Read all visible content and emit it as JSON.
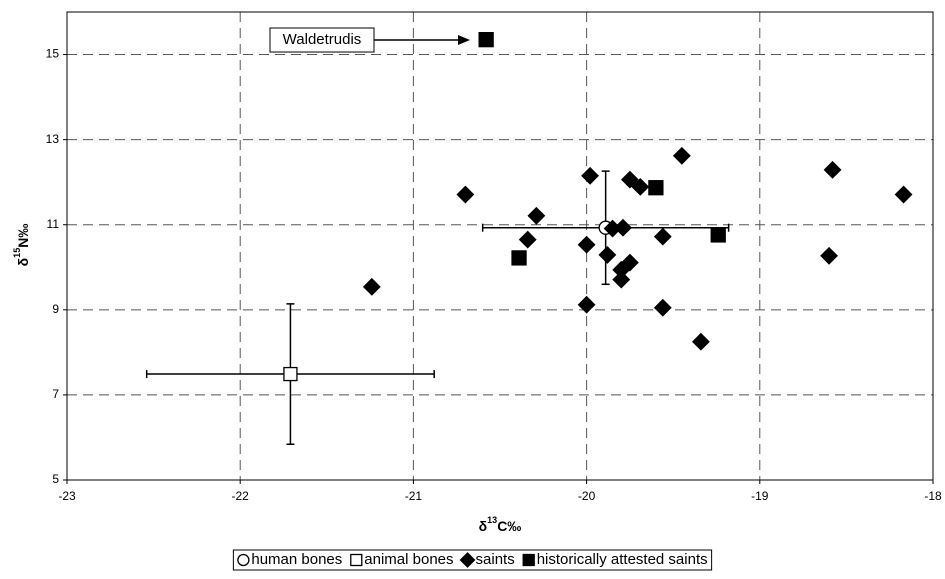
{
  "chart_data": {
    "type": "scatter",
    "x_label": [
      "δ",
      "13",
      "C‰"
    ],
    "y_label": [
      "δ",
      "15",
      "N‰"
    ],
    "xlim": [
      -23,
      -18
    ],
    "xticks": [
      -23,
      -22,
      -21,
      -20,
      -19,
      -18
    ],
    "ylim": [
      5,
      16
    ],
    "yticks": [
      5,
      7,
      9,
      11,
      13,
      15
    ],
    "grid": true,
    "legend": "bottom",
    "annotation": "Waldetrudis",
    "series": [
      {
        "name": "human bones",
        "marker": "circle",
        "filled": false,
        "color": "#000000",
        "x": [
          -19.89
        ],
        "values": [
          10.93
        ],
        "xerr": [
          0.71
        ],
        "yerr": [
          1.33
        ]
      },
      {
        "name": "animal bones",
        "marker": "square",
        "filled": false,
        "color": "#000000",
        "x": [
          -21.71
        ],
        "values": [
          7.49
        ],
        "xerr": [
          0.83
        ],
        "yerr": [
          1.65
        ]
      },
      {
        "name": "saints",
        "marker": "diamond",
        "filled": true,
        "color": "#000000",
        "x": [
          -21.24,
          -20.7,
          -20.29,
          -20.34,
          -19.98,
          -20.0,
          -20.0,
          -19.88,
          -19.85,
          -19.79,
          -19.8,
          -19.8,
          -19.75,
          -19.75,
          -19.69,
          -19.56,
          -19.56,
          -19.45,
          -19.34,
          -18.58,
          -18.6,
          -18.17
        ],
        "values": [
          9.54,
          11.71,
          11.21,
          10.65,
          12.15,
          10.53,
          9.12,
          10.29,
          10.91,
          10.93,
          9.94,
          9.71,
          10.11,
          12.06,
          11.89,
          10.72,
          9.05,
          12.62,
          8.25,
          12.29,
          10.27,
          11.71
        ]
      },
      {
        "name": "historically attested saints",
        "marker": "square",
        "filled": true,
        "color": "#000000",
        "x": [
          -20.58,
          -20.39,
          -19.6,
          -19.24
        ],
        "values": [
          15.35,
          10.22,
          11.87,
          10.76
        ]
      }
    ]
  }
}
